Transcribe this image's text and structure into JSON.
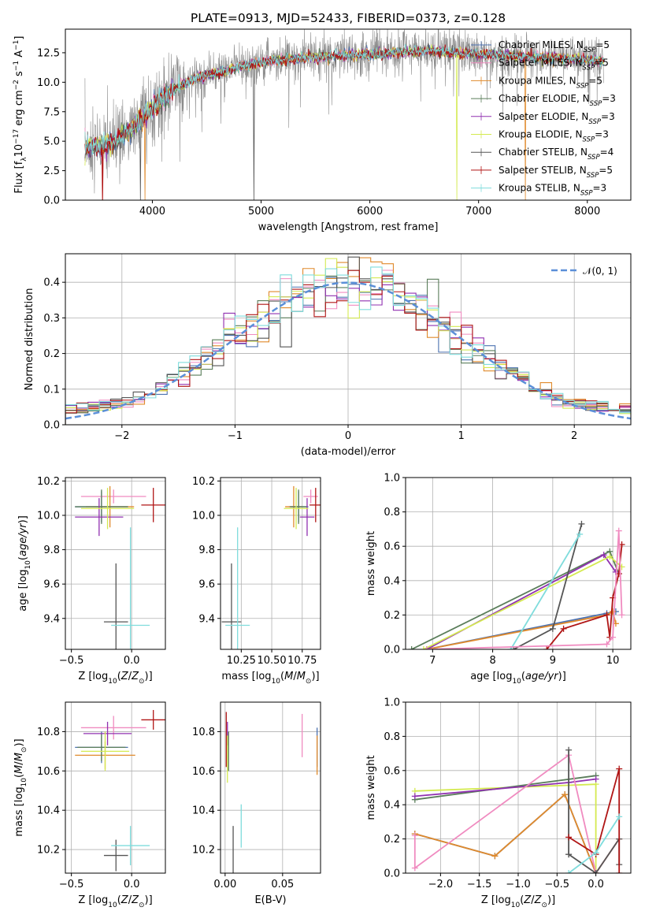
{
  "title": "PLATE=0913, MJD=52433, FIBERID=0373, z=0.128",
  "colors": {
    "chabrier_miles": "#4c72b0",
    "salpeter_miles": "#f08bc0",
    "kroupa_miles": "#e08a2c",
    "chabrier_elodie": "#5a7d5a",
    "salpeter_elodie": "#9030b0",
    "kroupa_elodie": "#d4ea50",
    "chabrier_stelib": "#555555",
    "salpeter_stelib": "#b01515",
    "kroupa_stelib": "#7fdcdc",
    "gaussian": "#5b8fd8",
    "grid": "#b0b0b0"
  },
  "chart_data": [
    {
      "id": "spectrum",
      "type": "line",
      "xlabel": "wavelength [Angstrom, rest frame]",
      "ylabel": "Flux [f_λ10^-17 erg cm^-2 s^-1 A^-1]",
      "xlim": [
        3200,
        8400
      ],
      "ylim": [
        0,
        14.5
      ],
      "xticks": [
        4000,
        5000,
        6000,
        7000,
        8000
      ],
      "yticks": [
        0.0,
        2.5,
        5.0,
        7.5,
        10.0,
        12.5
      ],
      "ytick_labels": [
        "0.0",
        "2.5",
        "5.0",
        "7.5",
        "10.0",
        "12.5"
      ],
      "legend_position": "right",
      "legend": [
        {
          "label": "Chabrier MILES, N",
          "sub": "SSP",
          "suffix": "=5",
          "color": "chabrier_miles"
        },
        {
          "label": "Salpeter MILES, N",
          "sub": "SSP",
          "suffix": "=5",
          "color": "salpeter_miles"
        },
        {
          "label": "Kroupa MILES, N",
          "sub": "SSP",
          "suffix": "=5",
          "color": "kroupa_miles"
        },
        {
          "label": "Chabrier ELODIE, N",
          "sub": "SSP",
          "suffix": "=3",
          "color": "chabrier_elodie"
        },
        {
          "label": "Salpeter ELODIE, N",
          "sub": "SSP",
          "suffix": "=3",
          "color": "salpeter_elodie"
        },
        {
          "label": "Kroupa ELODIE, N",
          "sub": "SSP",
          "suffix": "=3",
          "color": "kroupa_elodie"
        },
        {
          "label": "Chabrier STELIB, N",
          "sub": "SSP",
          "suffix": "=4",
          "color": "chabrier_stelib"
        },
        {
          "label": "Salpeter STELIB, N",
          "sub": "SSP",
          "suffix": "=5",
          "color": "salpeter_stelib"
        },
        {
          "label": "Kroupa STELIB, N",
          "sub": "SSP",
          "suffix": "=3",
          "color": "kroupa_stelib"
        }
      ],
      "continuum": {
        "x": [
          3380,
          3500,
          3650,
          3800,
          4000,
          4200,
          4400,
          4600,
          4800,
          5000,
          5200,
          5400,
          5600,
          5800,
          6000,
          6200,
          6400,
          6600,
          6800,
          7000,
          7200,
          7400,
          7600,
          7800,
          8000,
          8150
        ],
        "y": [
          4.5,
          4.6,
          4.9,
          6.0,
          7.8,
          9.4,
          10.4,
          10.8,
          11.3,
          11.7,
          11.9,
          12.1,
          12.2,
          12.3,
          12.4,
          12.5,
          12.6,
          12.6,
          12.5,
          12.4,
          12.3,
          12.2,
          12.1,
          12.0,
          11.9,
          11.8
        ]
      },
      "drops": [
        {
          "x": 3540,
          "color": "salpeter_stelib"
        },
        {
          "x": 3890,
          "color": "chabrier_stelib"
        },
        {
          "x": 3930,
          "color": "kroupa_miles"
        },
        {
          "x": 4935,
          "color": "chabrier_stelib"
        },
        {
          "x": 6800,
          "color": "kroupa_elodie"
        },
        {
          "x": 7430,
          "color": "kroupa_miles"
        }
      ]
    },
    {
      "id": "residuals",
      "type": "histogram",
      "xlabel": "(data-model)/error",
      "ylabel": "Normed distribution",
      "xlim": [
        -2.5,
        2.5
      ],
      "ylim": [
        0,
        0.48
      ],
      "xticks": [
        -2,
        -1,
        0,
        1,
        2
      ],
      "xtick_labels": [
        "−2",
        "−1",
        "0",
        "1",
        "2"
      ],
      "yticks": [
        0.0,
        0.1,
        0.2,
        0.3,
        0.4
      ],
      "ytick_labels": [
        "0.0",
        "0.1",
        "0.2",
        "0.3",
        "0.4"
      ],
      "bin_width": 0.1,
      "gaussian_label": "𝒩(0, 1)",
      "legend_position": "upper right",
      "series_colors": [
        "chabrier_miles",
        "salpeter_miles",
        "kroupa_miles",
        "chabrier_elodie",
        "salpeter_elodie",
        "kroupa_elodie",
        "chabrier_stelib",
        "salpeter_stelib",
        "kroupa_stelib"
      ]
    },
    {
      "id": "age_vs_Z",
      "type": "errorbar",
      "xlabel": "Z [log10(Z/Z⊙)]",
      "ylabel": "age  [log10(age/yr)]",
      "xlim": [
        -0.55,
        0.28
      ],
      "ylim": [
        9.22,
        10.22
      ],
      "xticks": [
        -0.5,
        0.0
      ],
      "xtick_labels": [
        "−0.5",
        "0.0"
      ],
      "yticks": [
        9.4,
        9.6,
        9.8,
        10.0,
        10.2
      ],
      "ytick_labels": [
        "9.4",
        "9.6",
        "9.8",
        "10.0",
        "10.2"
      ],
      "points": [
        {
          "x": -0.25,
          "y": 10.05,
          "xerr": 0.22,
          "yerr": 0.09,
          "color": "chabrier_miles"
        },
        {
          "x": -0.15,
          "y": 10.11,
          "xerr": 0.27,
          "yerr": 0.04,
          "color": "salpeter_miles"
        },
        {
          "x": -0.18,
          "y": 10.05,
          "xerr": 0.2,
          "yerr": 0.12,
          "color": "kroupa_miles"
        },
        {
          "x": -0.25,
          "y": 10.05,
          "xerr": 0.22,
          "yerr": 0.1,
          "color": "chabrier_elodie"
        },
        {
          "x": -0.27,
          "y": 9.99,
          "xerr": 0.2,
          "yerr": 0.11,
          "color": "salpeter_elodie"
        },
        {
          "x": -0.2,
          "y": 10.04,
          "xerr": 0.22,
          "yerr": 0.12,
          "color": "kroupa_elodie"
        },
        {
          "x": -0.13,
          "y": 9.38,
          "xerr": 0.1,
          "yerr": 0.34,
          "color": "chabrier_stelib"
        },
        {
          "x": 0.18,
          "y": 10.06,
          "xerr": 0.1,
          "yerr": 0.1,
          "color": "salpeter_stelib"
        },
        {
          "x": -0.01,
          "y": 9.36,
          "xerr": 0.16,
          "yerr": 0.57,
          "color": "kroupa_stelib"
        }
      ]
    },
    {
      "id": "age_vs_mass",
      "type": "errorbar",
      "xlabel": "mass [log10(M/M⊙)]",
      "ylabel": "",
      "xlim": [
        10.08,
        10.9
      ],
      "ylim": [
        9.22,
        10.22
      ],
      "xticks": [
        10.25,
        10.5,
        10.75
      ],
      "xtick_labels": [
        "10.25",
        "10.50",
        "10.75"
      ],
      "yticks": [
        9.4,
        9.6,
        9.8,
        10.0,
        10.2
      ],
      "ytick_labels": [
        "9.4",
        "9.6",
        "9.8",
        "10.0",
        "10.2"
      ],
      "points": [
        {
          "x": 10.72,
          "y": 10.05,
          "xerr": 0.08,
          "yerr": 0.09,
          "color": "chabrier_miles"
        },
        {
          "x": 10.82,
          "y": 10.11,
          "xerr": 0.06,
          "yerr": 0.04,
          "color": "salpeter_miles"
        },
        {
          "x": 10.68,
          "y": 10.05,
          "xerr": 0.07,
          "yerr": 0.12,
          "color": "kroupa_miles"
        },
        {
          "x": 10.72,
          "y": 10.05,
          "xerr": 0.07,
          "yerr": 0.1,
          "color": "chabrier_elodie"
        },
        {
          "x": 10.79,
          "y": 9.99,
          "xerr": 0.06,
          "yerr": 0.11,
          "color": "salpeter_elodie"
        },
        {
          "x": 10.7,
          "y": 10.04,
          "xerr": 0.1,
          "yerr": 0.12,
          "color": "kroupa_elodie"
        },
        {
          "x": 10.17,
          "y": 9.38,
          "xerr": 0.08,
          "yerr": 0.34,
          "color": "chabrier_stelib"
        },
        {
          "x": 10.86,
          "y": 10.06,
          "xerr": 0.05,
          "yerr": 0.1,
          "color": "salpeter_stelib"
        },
        {
          "x": 10.22,
          "y": 9.36,
          "xerr": 0.1,
          "yerr": 0.57,
          "color": "kroupa_stelib"
        }
      ]
    },
    {
      "id": "weight_vs_age",
      "type": "line",
      "xlabel": "age  [log10(age/yr)]",
      "ylabel": "mass weight",
      "xlim": [
        6.55,
        10.3
      ],
      "ylim": [
        0,
        1.0
      ],
      "xticks": [
        7,
        8,
        9,
        10
      ],
      "xtick_labels": [
        "7",
        "8",
        "9",
        "10"
      ],
      "yticks": [
        0,
        0.2,
        0.4,
        0.6,
        0.8,
        1.0
      ],
      "ytick_labels": [
        "0.0",
        "0.2",
        "0.4",
        "0.6",
        "0.8",
        "1.0"
      ],
      "series": [
        {
          "color": "chabrier_miles",
          "x": [
            6.9,
            9.9,
            10.05
          ],
          "y": [
            0.0,
            0.21,
            0.22
          ]
        },
        {
          "color": "kroupa_miles",
          "x": [
            6.9,
            9.9,
            10.0,
            10.05
          ],
          "y": [
            0.0,
            0.2,
            0.22,
            0.15
          ]
        },
        {
          "color": "chabrier_elodie",
          "x": [
            6.65,
            9.95,
            10.1
          ],
          "y": [
            0.0,
            0.57,
            0.44
          ]
        },
        {
          "color": "salpeter_elodie",
          "x": [
            6.9,
            9.85,
            10.05
          ],
          "y": [
            0.0,
            0.55,
            0.45
          ]
        },
        {
          "color": "kroupa_elodie",
          "x": [
            6.85,
            9.95,
            10.15
          ],
          "y": [
            0.0,
            0.54,
            0.48
          ]
        },
        {
          "color": "chabrier_stelib",
          "x": [
            8.35,
            9.0,
            9.48
          ],
          "y": [
            0.0,
            0.12,
            0.73
          ]
        },
        {
          "color": "kroupa_stelib",
          "x": [
            8.3,
            9.45
          ],
          "y": [
            0.0,
            0.67
          ]
        },
        {
          "color": "salpeter_stelib",
          "x": [
            8.9,
            9.18,
            9.9,
            9.95,
            10.0,
            10.1,
            10.15
          ],
          "y": [
            0.0,
            0.12,
            0.2,
            0.07,
            0.3,
            0.44,
            0.61
          ]
        },
        {
          "color": "salpeter_miles",
          "x": [
            6.9,
            9.9,
            10.0,
            10.1,
            10.15
          ],
          "y": [
            0.0,
            0.03,
            0.07,
            0.69,
            0.2
          ]
        }
      ]
    },
    {
      "id": "mass_vs_Z",
      "type": "errorbar",
      "xlabel": "Z [log10(Z/Z⊙)]",
      "ylabel": "mass [log10(M/M⊙)]",
      "xlim": [
        -0.55,
        0.28
      ],
      "ylim": [
        10.08,
        10.95
      ],
      "xticks": [
        -0.5,
        0.0
      ],
      "xtick_labels": [
        "−0.5",
        "0.0"
      ],
      "yticks": [
        10.2,
        10.4,
        10.6,
        10.8
      ],
      "ytick_labels": [
        "10.2",
        "10.4",
        "10.6",
        "10.8"
      ],
      "points": [
        {
          "x": -0.25,
          "y": 10.72,
          "xerr": 0.22,
          "yerr": 0.08,
          "color": "chabrier_miles"
        },
        {
          "x": -0.15,
          "y": 10.82,
          "xerr": 0.27,
          "yerr": 0.06,
          "color": "salpeter_miles"
        },
        {
          "x": -0.22,
          "y": 10.68,
          "xerr": 0.25,
          "yerr": 0.07,
          "color": "kroupa_miles"
        },
        {
          "x": -0.25,
          "y": 10.72,
          "xerr": 0.2,
          "yerr": 0.07,
          "color": "chabrier_elodie"
        },
        {
          "x": -0.2,
          "y": 10.79,
          "xerr": 0.2,
          "yerr": 0.06,
          "color": "salpeter_elodie"
        },
        {
          "x": -0.22,
          "y": 10.7,
          "xerr": 0.2,
          "yerr": 0.1,
          "color": "kroupa_elodie"
        },
        {
          "x": -0.13,
          "y": 10.17,
          "xerr": 0.1,
          "yerr": 0.08,
          "color": "chabrier_stelib"
        },
        {
          "x": 0.18,
          "y": 10.86,
          "xerr": 0.1,
          "yerr": 0.05,
          "color": "salpeter_stelib"
        },
        {
          "x": -0.01,
          "y": 10.22,
          "xerr": 0.16,
          "yerr": 0.1,
          "color": "kroupa_stelib"
        }
      ]
    },
    {
      "id": "mass_vs_ebv",
      "type": "errorbar",
      "xlabel": "E(B-V)",
      "ylabel": "",
      "xlim": [
        -0.004,
        0.083
      ],
      "ylim": [
        10.08,
        10.95
      ],
      "xticks": [
        0.0,
        0.05
      ],
      "xtick_labels": [
        "0.00",
        "0.05"
      ],
      "yticks": [
        10.2,
        10.4,
        10.6,
        10.8
      ],
      "ytick_labels": [
        "10.2",
        "10.4",
        "10.6",
        "10.8"
      ],
      "points": [
        {
          "x": 0.08,
          "y": 10.72,
          "xerr": 0,
          "yerr": 0.1,
          "color": "chabrier_miles"
        },
        {
          "x": 0.067,
          "y": 10.78,
          "xerr": 0,
          "yerr": 0.11,
          "color": "salpeter_miles"
        },
        {
          "x": 0.08,
          "y": 10.68,
          "xerr": 0,
          "yerr": 0.1,
          "color": "kroupa_miles"
        },
        {
          "x": 0.003,
          "y": 10.7,
          "xerr": 0,
          "yerr": 0.1,
          "color": "chabrier_elodie"
        },
        {
          "x": 0.002,
          "y": 10.79,
          "xerr": 0,
          "yerr": 0.06,
          "color": "salpeter_elodie"
        },
        {
          "x": 0.002,
          "y": 10.66,
          "xerr": 0,
          "yerr": 0.12,
          "color": "kroupa_elodie"
        },
        {
          "x": 0.007,
          "y": 10.2,
          "xerr": 0,
          "yerr": 0.12,
          "color": "chabrier_stelib"
        },
        {
          "x": 0.001,
          "y": 10.76,
          "xerr": 0,
          "yerr": 0.14,
          "color": "salpeter_stelib"
        },
        {
          "x": 0.014,
          "y": 10.32,
          "xerr": 0,
          "yerr": 0.11,
          "color": "kroupa_stelib"
        }
      ]
    },
    {
      "id": "weight_vs_Z",
      "type": "line",
      "xlabel": "Z [log10(Z/Z⊙)]",
      "ylabel": "mass weight",
      "xlim": [
        -2.45,
        0.45
      ],
      "ylim": [
        0,
        1.0
      ],
      "xticks": [
        -2.0,
        -1.5,
        -1.0,
        -0.5,
        0.0
      ],
      "xtick_labels": [
        "−2.0",
        "−1.5",
        "−1.0",
        "−0.5",
        "0.0"
      ],
      "yticks": [
        0,
        0.2,
        0.4,
        0.6,
        0.8,
        1.0
      ],
      "ytick_labels": [
        "0.0",
        "0.2",
        "0.4",
        "0.6",
        "0.8",
        "1.0"
      ],
      "series": [
        {
          "color": "kroupa_elodie",
          "x": [
            -2.33,
            0.0,
            0.0
          ],
          "y": [
            0.48,
            0.52,
            0.0
          ]
        },
        {
          "color": "chabrier_elodie",
          "x": [
            -2.33,
            0.0
          ],
          "y": [
            0.43,
            0.57
          ]
        },
        {
          "color": "salpeter_elodie",
          "x": [
            -2.33,
            -0.35,
            0.0
          ],
          "y": [
            0.45,
            0.53,
            0.55
          ]
        },
        {
          "color": "chabrier_miles",
          "x": [
            -2.33,
            -1.3,
            -0.4,
            0.0
          ],
          "y": [
            0.23,
            0.1,
            0.46,
            0.0
          ]
        },
        {
          "color": "kroupa_miles",
          "x": [
            -2.33,
            -1.3,
            -0.4,
            0.0,
            0.3
          ],
          "y": [
            0.23,
            0.1,
            0.46,
            0.0,
            0.2
          ]
        },
        {
          "color": "salpeter_miles",
          "x": [
            -2.33,
            -2.33,
            -0.35,
            0.0,
            0.3
          ],
          "y": [
            0.22,
            0.03,
            0.69,
            0.0,
            0.2
          ]
        },
        {
          "color": "chabrier_stelib",
          "x": [
            -0.35,
            -0.35,
            -0.35,
            0.0,
            0.3,
            0.3
          ],
          "y": [
            0.72,
            0.11,
            0.11,
            0.0,
            0.2,
            0.05
          ]
        },
        {
          "color": "salpeter_stelib",
          "x": [
            -0.35,
            0.0,
            0.3,
            0.3
          ],
          "y": [
            0.21,
            0.11,
            0.61,
            0.0
          ]
        },
        {
          "color": "kroupa_stelib",
          "x": [
            -0.35,
            0.0,
            0.3
          ],
          "y": [
            0.0,
            0.12,
            0.33
          ]
        }
      ]
    }
  ]
}
